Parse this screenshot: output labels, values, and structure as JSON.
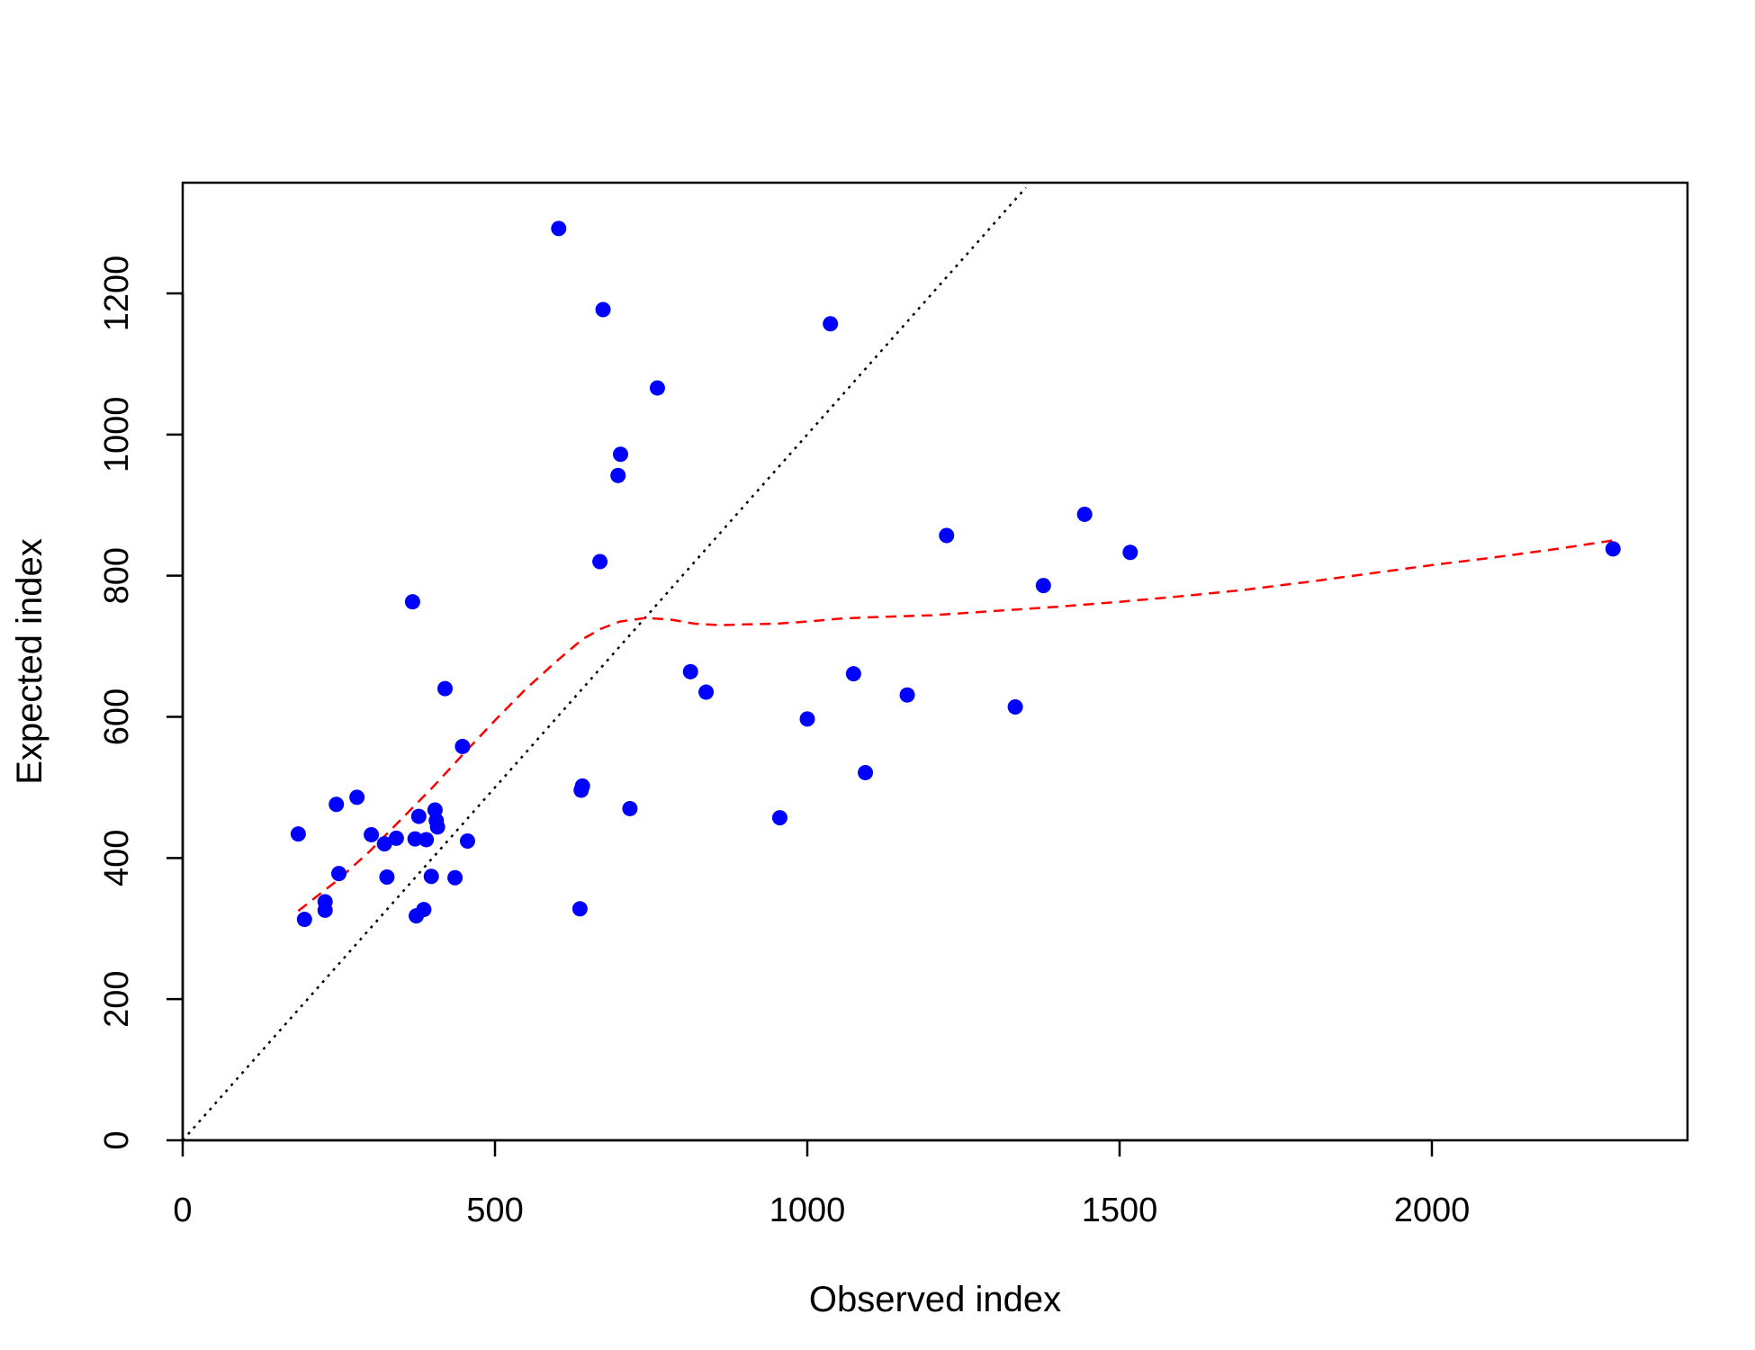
{
  "chart_data": {
    "type": "scatter",
    "title": "",
    "xlabel": "Observed index",
    "ylabel": "Expected index",
    "xlim": [
      0,
      2400
    ],
    "ylim": [
      0,
      1350
    ],
    "x_ticks": [
      0,
      500,
      1000,
      1500,
      2000
    ],
    "y_ticks": [
      0,
      200,
      400,
      600,
      800,
      1000,
      1200
    ],
    "grid": false,
    "legend": "none",
    "colors": {
      "points": "#0000ff",
      "smooth": "#ff0000",
      "identity": "#000000"
    },
    "points": [
      {
        "x": 185,
        "y": 434
      },
      {
        "x": 195,
        "y": 313
      },
      {
        "x": 228,
        "y": 338
      },
      {
        "x": 228,
        "y": 326
      },
      {
        "x": 246,
        "y": 476
      },
      {
        "x": 250,
        "y": 378
      },
      {
        "x": 279,
        "y": 486
      },
      {
        "x": 302,
        "y": 433
      },
      {
        "x": 323,
        "y": 420
      },
      {
        "x": 327,
        "y": 373
      },
      {
        "x": 342,
        "y": 428
      },
      {
        "x": 368,
        "y": 763
      },
      {
        "x": 372,
        "y": 427
      },
      {
        "x": 374,
        "y": 318
      },
      {
        "x": 378,
        "y": 459
      },
      {
        "x": 386,
        "y": 327
      },
      {
        "x": 390,
        "y": 426
      },
      {
        "x": 398,
        "y": 374
      },
      {
        "x": 404,
        "y": 468
      },
      {
        "x": 406,
        "y": 453
      },
      {
        "x": 408,
        "y": 444
      },
      {
        "x": 420,
        "y": 640
      },
      {
        "x": 436,
        "y": 372
      },
      {
        "x": 448,
        "y": 558
      },
      {
        "x": 456,
        "y": 424
      },
      {
        "x": 602,
        "y": 1292
      },
      {
        "x": 636,
        "y": 328
      },
      {
        "x": 638,
        "y": 496
      },
      {
        "x": 640,
        "y": 502
      },
      {
        "x": 668,
        "y": 820
      },
      {
        "x": 673,
        "y": 1177
      },
      {
        "x": 697,
        "y": 942
      },
      {
        "x": 701,
        "y": 972
      },
      {
        "x": 716,
        "y": 470
      },
      {
        "x": 760,
        "y": 1066
      },
      {
        "x": 813,
        "y": 664
      },
      {
        "x": 838,
        "y": 635
      },
      {
        "x": 956,
        "y": 457
      },
      {
        "x": 1000,
        "y": 597
      },
      {
        "x": 1037,
        "y": 1157
      },
      {
        "x": 1074,
        "y": 661
      },
      {
        "x": 1093,
        "y": 521
      },
      {
        "x": 1160,
        "y": 631
      },
      {
        "x": 1223,
        "y": 857
      },
      {
        "x": 1333,
        "y": 614
      },
      {
        "x": 1378,
        "y": 786
      },
      {
        "x": 1444,
        "y": 887
      },
      {
        "x": 1517,
        "y": 833
      },
      {
        "x": 2290,
        "y": 838
      }
    ],
    "identity_line": {
      "from": [
        0,
        0
      ],
      "to": [
        1350,
        1350
      ]
    },
    "smooth_line": [
      [
        185,
        325
      ],
      [
        250,
        370
      ],
      [
        300,
        410
      ],
      [
        350,
        455
      ],
      [
        400,
        500
      ],
      [
        450,
        548
      ],
      [
        500,
        595
      ],
      [
        550,
        640
      ],
      [
        600,
        680
      ],
      [
        640,
        710
      ],
      [
        670,
        725
      ],
      [
        700,
        735
      ],
      [
        740,
        740
      ],
      [
        780,
        738
      ],
      [
        820,
        732
      ],
      [
        860,
        730
      ],
      [
        900,
        731
      ],
      [
        950,
        732
      ],
      [
        1000,
        735
      ],
      [
        1050,
        739
      ],
      [
        1100,
        741
      ],
      [
        1200,
        744
      ],
      [
        1300,
        750
      ],
      [
        1400,
        756
      ],
      [
        1500,
        763
      ],
      [
        1600,
        771
      ],
      [
        1700,
        780
      ],
      [
        1800,
        791
      ],
      [
        1900,
        803
      ],
      [
        2000,
        815
      ],
      [
        2100,
        826
      ],
      [
        2200,
        838
      ],
      [
        2290,
        850
      ]
    ]
  }
}
